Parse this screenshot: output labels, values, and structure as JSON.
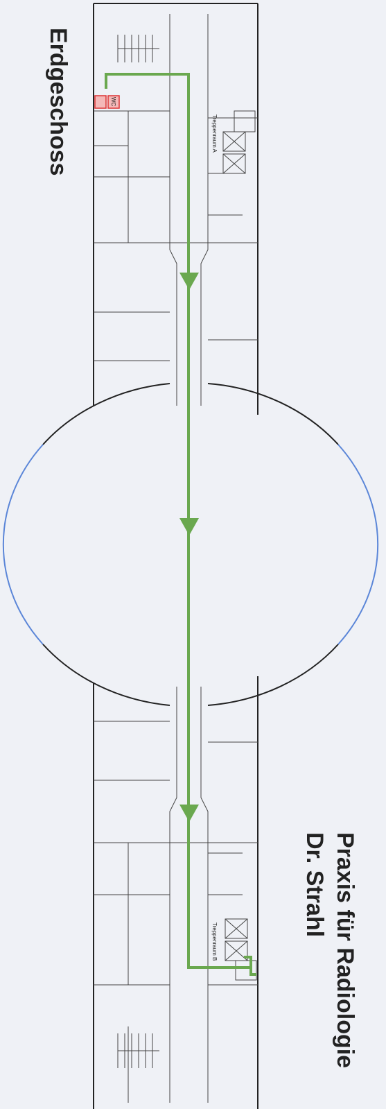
{
  "title": "Erdgeschoss",
  "destination": [
    "Praxis für Radiologie",
    "Dr. Strahl"
  ],
  "rooms": [
    "Treppenraum A",
    "Treppenraum B"
  ],
  "wc": "WC"
}
